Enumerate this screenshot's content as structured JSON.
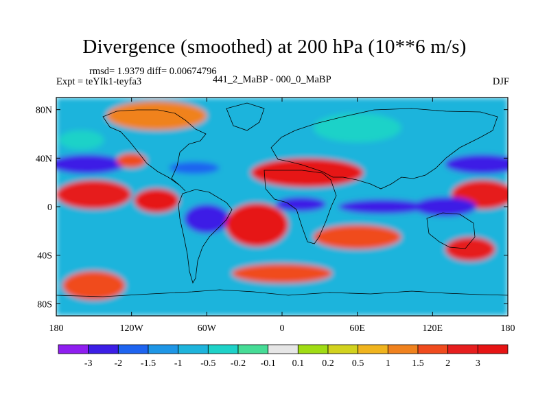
{
  "chart_data": {
    "type": "heatmap",
    "title": "Divergence (smoothed) at 200 hPa (10**6 m/s)",
    "stats_text": "rmsd= 1.9379 diff= 0.00674796",
    "experiment_text": "Expt = teYIk1-teyfa3",
    "center_subtitle": "441_2_MaBP - 000_0_MaBP",
    "season": "DJF",
    "x_range": [
      -180,
      180
    ],
    "y_range": [
      -90,
      90
    ],
    "x_ticks": [
      {
        "value": -180,
        "label": "180"
      },
      {
        "value": -120,
        "label": "120W"
      },
      {
        "value": -60,
        "label": "60W"
      },
      {
        "value": 0,
        "label": "0"
      },
      {
        "value": 60,
        "label": "60E"
      },
      {
        "value": 120,
        "label": "120E"
      },
      {
        "value": 180,
        "label": "180"
      }
    ],
    "y_ticks": [
      {
        "value": 80,
        "label": "80N"
      },
      {
        "value": 40,
        "label": "40N"
      },
      {
        "value": 0,
        "label": "0"
      },
      {
        "value": -40,
        "label": "40S"
      },
      {
        "value": -80,
        "label": "80S"
      }
    ],
    "colorbar": {
      "labels": [
        "-3",
        "-2",
        "-1.5",
        "-1",
        "-0.5",
        "-0.2",
        "-0.1",
        "0.1",
        "0.2",
        "0.5",
        "1",
        "1.5",
        "2",
        "3"
      ],
      "colors": [
        "#8f1ef0",
        "#3c1ee6",
        "#1e64f0",
        "#1e96e6",
        "#1eb4dc",
        "#1ed2c8",
        "#46dc96",
        "#e6e6e6",
        "#a0dc14",
        "#d2d21e",
        "#f0b41e",
        "#f0821e",
        "#f04b1e",
        "#e61e1e",
        "#e61414"
      ]
    },
    "field_regions": [
      {
        "lon": -155,
        "lat": 35,
        "rlon": 30,
        "rlat": 8,
        "value": -3
      },
      {
        "lon": 160,
        "lat": 35,
        "rlon": 30,
        "rlat": 8,
        "value": -2.5
      },
      {
        "lon": -120,
        "lat": 38,
        "rlon": 12,
        "rlat": 6,
        "value": 1.5
      },
      {
        "lon": -70,
        "lat": 32,
        "rlon": 20,
        "rlat": 5,
        "value": -2
      },
      {
        "lon": -160,
        "lat": 55,
        "rlon": 18,
        "rlat": 8,
        "value": -0.5
      },
      {
        "lon": -150,
        "lat": 10,
        "rlon": 30,
        "rlat": 12,
        "value": 2.5
      },
      {
        "lon": 160,
        "lat": 10,
        "rlon": 25,
        "rlat": 12,
        "value": 2.5
      },
      {
        "lon": -100,
        "lat": 5,
        "rlon": 18,
        "rlat": 10,
        "value": 3
      },
      {
        "lon": -60,
        "lat": -10,
        "rlon": 18,
        "rlat": 12,
        "value": -3
      },
      {
        "lon": -20,
        "lat": -15,
        "rlon": 25,
        "rlat": 18,
        "value": 3
      },
      {
        "lon": 15,
        "lat": 2,
        "rlon": 20,
        "rlat": 6,
        "value": -3
      },
      {
        "lon": 20,
        "lat": 28,
        "rlon": 45,
        "rlat": 12,
        "value": 3
      },
      {
        "lon": 80,
        "lat": 0,
        "rlon": 35,
        "rlat": 6,
        "value": -3
      },
      {
        "lon": 130,
        "lat": 0,
        "rlon": 25,
        "rlat": 8,
        "value": -2.5
      },
      {
        "lon": 60,
        "lat": -25,
        "rlon": 35,
        "rlat": 10,
        "value": 1.5
      },
      {
        "lon": -120,
        "lat": -35,
        "rlon": 35,
        "rlat": 10,
        "value": -0.8
      },
      {
        "lon": 0,
        "lat": -55,
        "rlon": 40,
        "rlat": 8,
        "value": 1.5
      },
      {
        "lon": 130,
        "lat": -55,
        "rlon": 35,
        "rlat": 10,
        "value": -1
      },
      {
        "lon": -150,
        "lat": -65,
        "rlon": 25,
        "rlat": 12,
        "value": 1.5
      },
      {
        "lon": -100,
        "lat": 75,
        "rlon": 40,
        "rlat": 12,
        "value": 1
      },
      {
        "lon": 60,
        "lat": 65,
        "rlon": 35,
        "rlat": 12,
        "value": -0.5
      },
      {
        "lon": 150,
        "lat": -35,
        "rlon": 20,
        "rlat": 10,
        "value": 2
      },
      {
        "lon": -20,
        "lat": 60,
        "rlon": 20,
        "rlat": 10,
        "value": -1
      }
    ]
  }
}
